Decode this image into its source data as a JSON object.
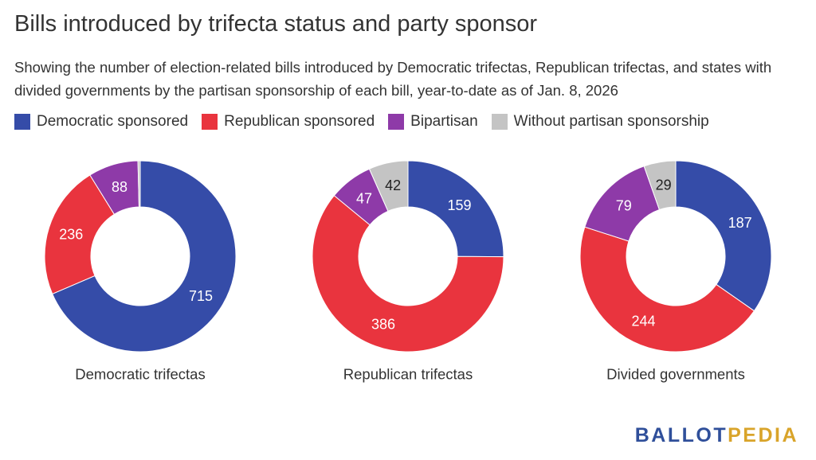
{
  "title": "Bills introduced by trifecta status and party sponsor",
  "subtitle": "Showing the number of election-related bills introduced by Democratic trifectas, Republican trifectas, and states with divided governments by the partisan sponsorship of each bill, year-to-date as of Jan. 8, 2026",
  "legend": [
    {
      "label": "Democratic sponsored",
      "color": "#354ca8"
    },
    {
      "label": "Republican sponsored",
      "color": "#e9343e"
    },
    {
      "label": "Bipartisan",
      "color": "#8e3aa8"
    },
    {
      "label": "Without partisan sponsorship",
      "color": "#c4c4c4"
    }
  ],
  "logo": {
    "part1": "BALLOT",
    "part2": "PEDIA"
  },
  "chart_data": [
    {
      "type": "pie",
      "title": "Democratic trifectas",
      "categories": [
        "Democratic sponsored",
        "Republican sponsored",
        "Bipartisan",
        "Without partisan sponsorship"
      ],
      "values": [
        715,
        236,
        88,
        4
      ],
      "labels": [
        "715",
        "236",
        "88",
        ""
      ],
      "colors": [
        "#354ca8",
        "#e9343e",
        "#8e3aa8",
        "#c4c4c4"
      ]
    },
    {
      "type": "pie",
      "title": "Republican trifectas",
      "categories": [
        "Democratic sponsored",
        "Republican sponsored",
        "Bipartisan",
        "Without partisan sponsorship"
      ],
      "values": [
        159,
        386,
        47,
        42
      ],
      "labels": [
        "159",
        "386",
        "47",
        "42"
      ],
      "colors": [
        "#354ca8",
        "#e9343e",
        "#8e3aa8",
        "#c4c4c4"
      ]
    },
    {
      "type": "pie",
      "title": "Divided governments",
      "categories": [
        "Democratic sponsored",
        "Republican sponsored",
        "Bipartisan",
        "Without partisan sponsorship"
      ],
      "values": [
        187,
        244,
        79,
        29
      ],
      "labels": [
        "187",
        "244",
        "79",
        "29"
      ],
      "colors": [
        "#354ca8",
        "#e9343e",
        "#8e3aa8",
        "#c4c4c4"
      ]
    }
  ]
}
